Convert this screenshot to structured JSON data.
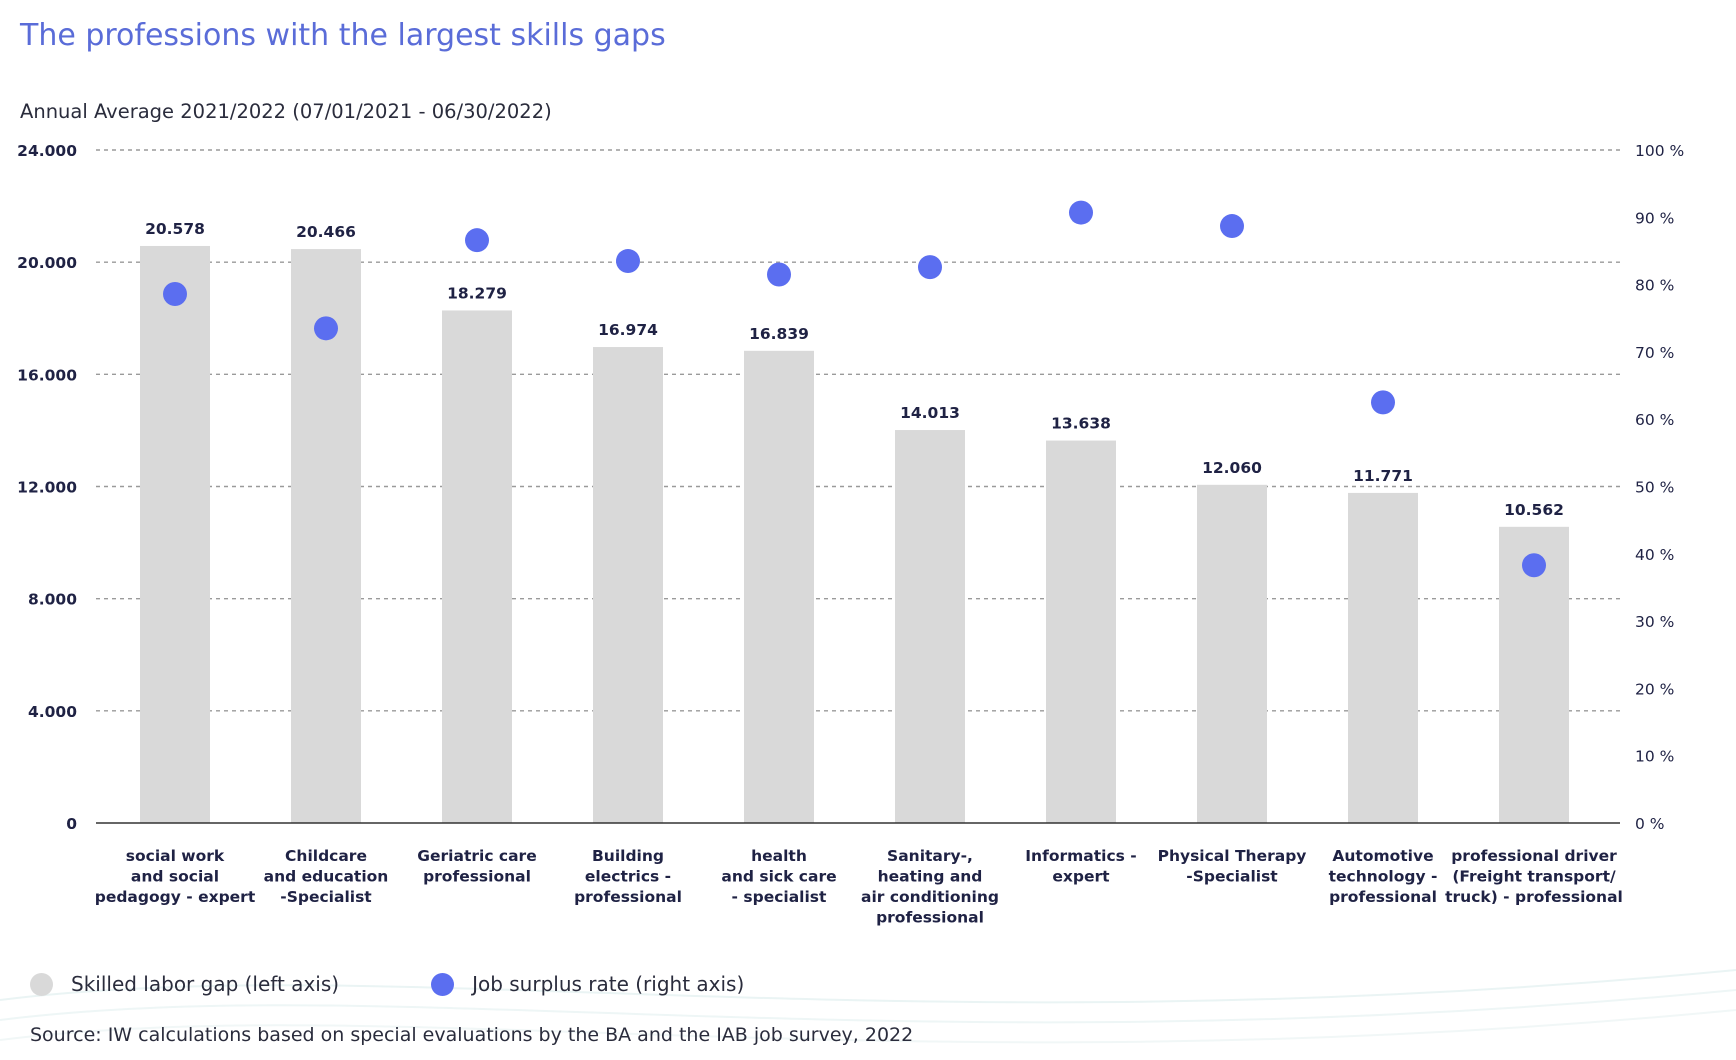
{
  "title": "The professions with the largest skills gaps",
  "subtitle": "Annual Average 2021/2022 (07/01/2021 - 06/30/2022)",
  "legend": {
    "gap_label": "Skilled labor gap (left axis)",
    "rate_label": "Job surplus rate (right axis)"
  },
  "source": "Source: IW calculations based on special evaluations by the BA and the IAB job survey, 2022",
  "colors": {
    "bar": "#d9d9d9",
    "dot": "#5b6ef0",
    "title": "#5a6cd8",
    "text": "#2a2c3c",
    "label": "#1f2244",
    "grid": "#9a9a9a"
  },
  "chart_data": {
    "type": "bar",
    "title": "The professions with the largest skills gaps",
    "categories": [
      [
        "social work",
        "and social",
        "pedagogy - expert"
      ],
      [
        "Childcare",
        "and education",
        "-Specialist"
      ],
      [
        "Geriatric care",
        "professional"
      ],
      [
        "Building",
        "electrics -",
        "professional"
      ],
      [
        "health",
        "and sick care",
        "- specialist"
      ],
      [
        "Sanitary-,",
        "heating and",
        "air conditioning",
        "professional"
      ],
      [
        "Informatics -",
        "expert"
      ],
      [
        "Physical Therapy",
        "-Specialist"
      ],
      [
        "Automotive",
        "technology -",
        "professional"
      ],
      [
        "professional driver",
        "(Freight transport/",
        "truck) - professional"
      ]
    ],
    "series": [
      {
        "name": "Skilled labor gap (left axis)",
        "axis": "left",
        "kind": "bar",
        "values": [
          20578,
          20466,
          18279,
          16974,
          16839,
          14013,
          13638,
          12060,
          11771,
          10562
        ],
        "value_labels": [
          "20.578",
          "20.466",
          "18.279",
          "16.974",
          "16.839",
          "14.013",
          "13.638",
          "12.060",
          "11.771",
          "10.562"
        ]
      },
      {
        "name": "Job surplus rate (right axis)",
        "axis": "right",
        "kind": "scatter",
        "values": [
          78.6,
          73.5,
          86.6,
          83.5,
          81.5,
          82.6,
          90.7,
          88.7,
          62.5,
          38.3
        ]
      }
    ],
    "ylim_left": [
      0,
      24000
    ],
    "ylim_right": [
      0,
      100
    ],
    "left_ticks": [
      {
        "value": 0,
        "label": "0"
      },
      {
        "value": 4000,
        "label": "4.000"
      },
      {
        "value": 8000,
        "label": "8.000"
      },
      {
        "value": 12000,
        "label": "12.000"
      },
      {
        "value": 16000,
        "label": "16.000"
      },
      {
        "value": 20000,
        "label": "20.000"
      },
      {
        "value": 24000,
        "label": "24.000"
      }
    ],
    "right_ticks": [
      {
        "value": 0,
        "label": "0 %"
      },
      {
        "value": 10,
        "label": "10 %"
      },
      {
        "value": 20,
        "label": "20 %"
      },
      {
        "value": 30,
        "label": "30 %"
      },
      {
        "value": 40,
        "label": "40 %"
      },
      {
        "value": 50,
        "label": "50 %"
      },
      {
        "value": 60,
        "label": "60 %"
      },
      {
        "value": 70,
        "label": "70 %"
      },
      {
        "value": 80,
        "label": "80 %"
      },
      {
        "value": 90,
        "label": "90 %"
      },
      {
        "value": 100,
        "label": "100 %"
      }
    ],
    "grid": true,
    "legend_position": "bottom-left"
  }
}
